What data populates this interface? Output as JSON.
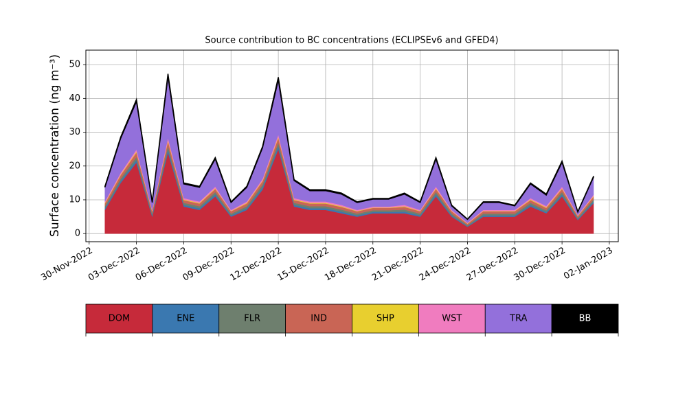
{
  "chart_data": {
    "type": "stacked_area",
    "title": "Source contribution to BC concentrations (ECLIPSEv6 and GFED4)",
    "y_label": "Surface concentration (ng m⁻³)",
    "x": [
      "2022-12-01",
      "2022-12-02",
      "2022-12-03",
      "2022-12-04",
      "2022-12-05",
      "2022-12-06",
      "2022-12-07",
      "2022-12-08",
      "2022-12-09",
      "2022-12-10",
      "2022-12-11",
      "2022-12-12",
      "2022-12-13",
      "2022-12-14",
      "2022-12-15",
      "2022-12-16",
      "2022-12-17",
      "2022-12-18",
      "2022-12-19",
      "2022-12-20",
      "2022-12-21",
      "2022-12-22",
      "2022-12-23",
      "2022-12-24",
      "2022-12-25",
      "2022-12-26",
      "2022-12-27",
      "2022-12-28",
      "2022-12-29",
      "2022-12-30",
      "2022-12-31",
      "2023-01-01"
    ],
    "series": [
      {
        "name": "DOM",
        "color": "#c62a3a",
        "values": [
          7,
          15,
          21,
          5,
          24,
          8,
          7,
          11,
          5,
          7,
          13,
          25,
          8,
          7,
          7,
          6,
          5,
          6,
          6,
          6,
          5,
          11,
          5,
          2,
          5,
          5,
          5,
          8,
          6,
          11,
          4,
          9
        ]
      },
      {
        "name": "ENE",
        "color": "#3a78b0",
        "values": [
          0.5,
          0.6,
          0.8,
          0.4,
          0.9,
          0.5,
          0.5,
          0.6,
          0.4,
          0.5,
          0.7,
          0.9,
          0.5,
          0.5,
          0.5,
          0.5,
          0.4,
          0.4,
          0.4,
          0.5,
          0.4,
          0.6,
          0.4,
          0.2,
          0.4,
          0.4,
          0.4,
          0.5,
          0.4,
          0.6,
          0.3,
          0.5
        ]
      },
      {
        "name": "FLR",
        "color": "#6e7f6e",
        "values": [
          0.6,
          0.7,
          0.9,
          0.5,
          1.0,
          0.6,
          0.6,
          0.7,
          0.5,
          0.6,
          0.8,
          1.0,
          0.6,
          0.6,
          0.6,
          0.6,
          0.5,
          0.5,
          0.5,
          0.6,
          0.5,
          0.7,
          0.5,
          0.3,
          0.5,
          0.5,
          0.5,
          0.6,
          0.5,
          0.7,
          0.4,
          0.6
        ]
      },
      {
        "name": "IND",
        "color": "#c96555",
        "values": [
          0.8,
          1.0,
          1.3,
          0.7,
          1.4,
          0.8,
          0.8,
          0.9,
          0.7,
          0.8,
          1.0,
          1.4,
          0.8,
          0.8,
          0.8,
          0.8,
          0.7,
          0.7,
          0.7,
          0.8,
          0.7,
          0.9,
          0.7,
          0.4,
          0.7,
          0.7,
          0.7,
          0.8,
          0.7,
          0.9,
          0.5,
          0.8
        ]
      },
      {
        "name": "SHP",
        "color": "#e8cf2f",
        "values": [
          0.2,
          0.2,
          0.3,
          0.1,
          0.3,
          0.2,
          0.2,
          0.2,
          0.1,
          0.2,
          0.2,
          0.3,
          0.2,
          0.2,
          0.2,
          0.2,
          0.1,
          0.1,
          0.1,
          0.2,
          0.1,
          0.2,
          0.1,
          0.1,
          0.1,
          0.1,
          0.1,
          0.2,
          0.2,
          0.2,
          0.1,
          0.2
        ]
      },
      {
        "name": "WST",
        "color": "#f07cbf",
        "values": [
          0.4,
          0.5,
          0.6,
          0.3,
          0.7,
          0.4,
          0.4,
          0.5,
          0.3,
          0.4,
          0.5,
          0.7,
          0.4,
          0.4,
          0.4,
          0.4,
          0.3,
          0.3,
          0.3,
          0.4,
          0.3,
          0.5,
          0.3,
          0.2,
          0.3,
          0.3,
          0.3,
          0.4,
          0.4,
          0.5,
          0.2,
          0.4
        ]
      },
      {
        "name": "TRA",
        "color": "#9370db",
        "values": [
          4.2,
          10.2,
          14.2,
          2.2,
          18.2,
          4.2,
          4.2,
          8.2,
          2.2,
          4.2,
          9.2,
          16.2,
          5.2,
          3.2,
          3.2,
          3.2,
          2.2,
          2.2,
          2.2,
          3.2,
          2.2,
          8.2,
          1.2,
          1.0,
          2.2,
          2.2,
          1.2,
          4.2,
          3.2,
          7.2,
          0.9,
          5.2
        ]
      },
      {
        "name": "BB",
        "color": "#000000",
        "values": [
          0.3,
          0.4,
          0.6,
          0.2,
          0.8,
          0.3,
          0.3,
          0.4,
          0.2,
          0.3,
          0.4,
          0.8,
          0.3,
          0.3,
          0.3,
          0.3,
          0.2,
          0.2,
          0.2,
          0.3,
          0.2,
          0.4,
          0.2,
          0.1,
          0.2,
          0.2,
          0.2,
          0.3,
          0.3,
          0.4,
          0.1,
          0.3
        ]
      }
    ],
    "xlim": [
      "2022-11-29T19:00",
      "2023-01-02T13:40"
    ],
    "xticks": [
      {
        "value": "2022-11-30",
        "label": "30-Nov-2022"
      },
      {
        "value": "2022-12-03",
        "label": "03-Dec-2022"
      },
      {
        "value": "2022-12-06",
        "label": "06-Dec-2022"
      },
      {
        "value": "2022-12-09",
        "label": "09-Dec-2022"
      },
      {
        "value": "2022-12-12",
        "label": "12-Dec-2022"
      },
      {
        "value": "2022-12-15",
        "label": "15-Dec-2022"
      },
      {
        "value": "2022-12-18",
        "label": "18-Dec-2022"
      },
      {
        "value": "2022-12-21",
        "label": "21-Dec-2022"
      },
      {
        "value": "2022-12-24",
        "label": "24-Dec-2022"
      },
      {
        "value": "2022-12-27",
        "label": "27-Dec-2022"
      },
      {
        "value": "2022-12-30",
        "label": "30-Dec-2022"
      },
      {
        "value": "2023-01-02",
        "label": "02-Jan-2023"
      }
    ],
    "ylim": [
      -2.4,
      54.3
    ],
    "yticks": [
      0,
      10,
      20,
      30,
      40,
      50
    ],
    "grid": true,
    "legend": "below"
  }
}
